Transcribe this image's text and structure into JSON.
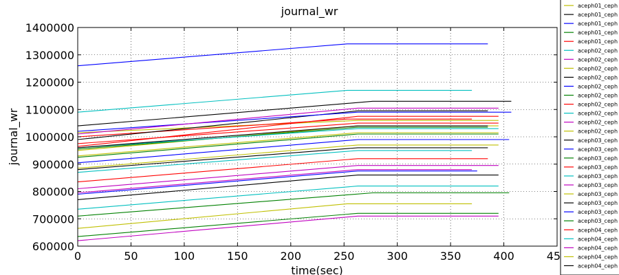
{
  "chart_data": {
    "type": "line",
    "title": "journal_wr",
    "xlabel": "time(sec)",
    "ylabel": "journal_wr",
    "xlim": [
      0,
      450
    ],
    "ylim": [
      600000,
      1400000
    ],
    "x_ticks": [
      0,
      50,
      100,
      150,
      200,
      250,
      300,
      350,
      400,
      450
    ],
    "y_ticks": [
      600000,
      700000,
      800000,
      900000,
      1000000,
      1100000,
      1200000,
      1300000,
      1400000
    ],
    "grid": true,
    "legend": "right, outside",
    "series": [
      {
        "name": "aceph01_ceph",
        "color": "#bfbf00",
        "start": 1015000,
        "plateau": 1060000,
        "ramp_end": 263,
        "end": 395
      },
      {
        "name": "aceph01_ceph",
        "color": "#000000",
        "start": 1040000,
        "plateau": 1130000,
        "ramp_end": 277,
        "end": 407
      },
      {
        "name": "aceph01_ceph",
        "color": "#0000ff",
        "start": 1260000,
        "plateau": 1340000,
        "ramp_end": 253,
        "end": 385
      },
      {
        "name": "aceph01_ceph",
        "color": "#008000",
        "start": 635000,
        "plateau": 720000,
        "ramp_end": 263,
        "end": 395
      },
      {
        "name": "aceph01_ceph",
        "color": "#ff0000",
        "start": 1000000,
        "plateau": 1065000,
        "ramp_end": 253,
        "end": 370
      },
      {
        "name": "aceph02_ceph",
        "color": "#00bfbf",
        "start": 1090000,
        "plateau": 1170000,
        "ramp_end": 253,
        "end": 370
      },
      {
        "name": "aceph02_ceph",
        "color": "#bf00bf",
        "start": 620000,
        "plateau": 710000,
        "ramp_end": 263,
        "end": 395
      },
      {
        "name": "aceph02_ceph",
        "color": "#bfbf00",
        "start": 665000,
        "plateau": 755000,
        "ramp_end": 253,
        "end": 370
      },
      {
        "name": "aceph02_ceph",
        "color": "#000000",
        "start": 990000,
        "plateau": 1095000,
        "ramp_end": 263,
        "end": 385
      },
      {
        "name": "aceph02_ceph",
        "color": "#0000ff",
        "start": 1020000,
        "plateau": 1090000,
        "ramp_end": 263,
        "end": 407
      },
      {
        "name": "aceph02_ceph",
        "color": "#008000",
        "start": 710000,
        "plateau": 795000,
        "ramp_end": 277,
        "end": 405
      },
      {
        "name": "aceph02_ceph",
        "color": "#ff0000",
        "start": 965000,
        "plateau": 1075000,
        "ramp_end": 263,
        "end": 395
      },
      {
        "name": "aceph02_ceph",
        "color": "#00bfbf",
        "start": 735000,
        "plateau": 820000,
        "ramp_end": 263,
        "end": 395
      },
      {
        "name": "aceph02_ceph",
        "color": "#bf00bf",
        "start": 1010000,
        "plateau": 1105000,
        "ramp_end": 263,
        "end": 395
      },
      {
        "name": "aceph02_ceph",
        "color": "#bfbf00",
        "start": 950000,
        "plateau": 1040000,
        "ramp_end": 263,
        "end": 395
      },
      {
        "name": "aceph03_ceph",
        "color": "#000000",
        "start": 770000,
        "plateau": 860000,
        "ramp_end": 263,
        "end": 395
      },
      {
        "name": "aceph03_ceph",
        "color": "#0000ff",
        "start": 905000,
        "plateau": 990000,
        "ramp_end": 263,
        "end": 405
      },
      {
        "name": "aceph03_ceph",
        "color": "#008000",
        "start": 955000,
        "plateau": 1035000,
        "ramp_end": 263,
        "end": 385
      },
      {
        "name": "aceph03_ceph",
        "color": "#ff0000",
        "start": 835000,
        "plateau": 920000,
        "ramp_end": 263,
        "end": 385
      },
      {
        "name": "aceph03_ceph",
        "color": "#00bfbf",
        "start": 870000,
        "plateau": 950000,
        "ramp_end": 263,
        "end": 370
      },
      {
        "name": "aceph03_ceph",
        "color": "#bf00bf",
        "start": 795000,
        "plateau": 880000,
        "ramp_end": 263,
        "end": 370
      },
      {
        "name": "aceph03_ceph",
        "color": "#bfbf00",
        "start": 885000,
        "plateau": 970000,
        "ramp_end": 263,
        "end": 395
      },
      {
        "name": "aceph03_ceph",
        "color": "#000000",
        "start": 880000,
        "plateau": 960000,
        "ramp_end": 263,
        "end": 385
      },
      {
        "name": "aceph03_ceph",
        "color": "#0000ff",
        "start": 790000,
        "plateau": 875000,
        "ramp_end": 263,
        "end": 375
      },
      {
        "name": "aceph03_ceph",
        "color": "#008000",
        "start": 925000,
        "plateau": 1010000,
        "ramp_end": 263,
        "end": 395
      },
      {
        "name": "aceph04_ceph",
        "color": "#ff0000",
        "start": 975000,
        "plateau": 1050000,
        "ramp_end": 263,
        "end": 395
      },
      {
        "name": "aceph04_ceph",
        "color": "#00bfbf",
        "start": 960000,
        "plateau": 1030000,
        "ramp_end": 263,
        "end": 395
      },
      {
        "name": "aceph04_ceph",
        "color": "#bf00bf",
        "start": 810000,
        "plateau": 895000,
        "ramp_end": 263,
        "end": 395
      },
      {
        "name": "aceph04_ceph",
        "color": "#bfbf00",
        "start": 930000,
        "plateau": 1015000,
        "ramp_end": 263,
        "end": 395
      },
      {
        "name": "aceph04_ceph",
        "color": "#000000",
        "start": 960000,
        "plateau": 1040000,
        "ramp_end": 263,
        "end": 385
      }
    ]
  }
}
